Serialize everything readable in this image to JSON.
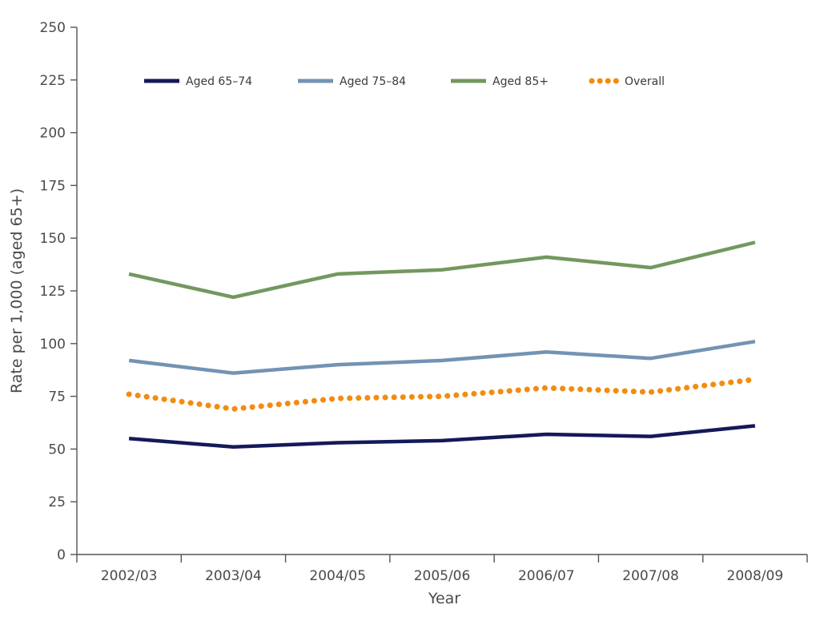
{
  "chart_data": {
    "type": "line",
    "title": "",
    "xlabel": "Year",
    "ylabel": "Rate per 1,000 (aged 65+)",
    "ylim": [
      0,
      250
    ],
    "yticks": [
      0,
      25,
      50,
      75,
      100,
      125,
      150,
      175,
      200,
      225,
      250
    ],
    "categories": [
      "2002/03",
      "2003/04",
      "2004/05",
      "2005/06",
      "2006/07",
      "2007/08",
      "2008/09"
    ],
    "legend_position": "top",
    "series": [
      {
        "name": "Aged 65–74",
        "color": "#14195a",
        "style": "solid",
        "values": [
          55,
          51,
          53,
          54,
          57,
          56,
          61
        ]
      },
      {
        "name": "Aged 75–84",
        "color": "#7393b3",
        "style": "solid",
        "values": [
          92,
          86,
          90,
          92,
          96,
          93,
          101
        ]
      },
      {
        "name": "Aged 85+",
        "color": "#73985e",
        "style": "solid",
        "values": [
          133,
          122,
          133,
          135,
          141,
          136,
          148
        ]
      },
      {
        "name": "Overall",
        "color": "#f28c10",
        "style": "dotted",
        "values": [
          76,
          69,
          74,
          75,
          79,
          77,
          83
        ]
      }
    ]
  }
}
